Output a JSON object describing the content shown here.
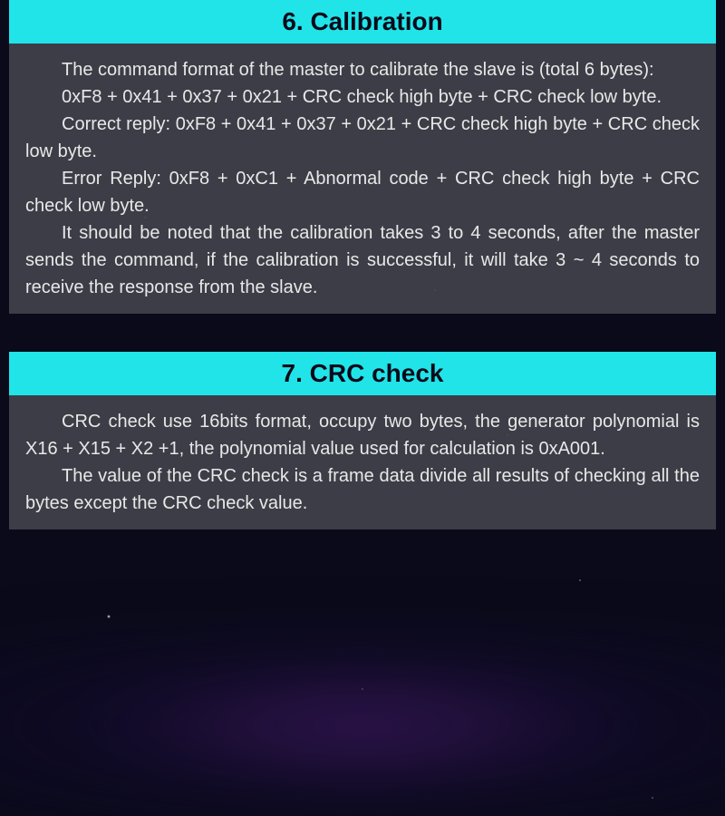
{
  "colors": {
    "header_bg": "#20e4e8",
    "header_text": "#0a0a1a",
    "body_bg": "rgba(70,70,80,0.85)",
    "body_text": "#e8e8e8",
    "page_bg": "#0a0a1a"
  },
  "typography": {
    "header_fontsize": 28,
    "header_weight": 600,
    "body_fontsize": 20,
    "body_lineheight": 1.5,
    "text_indent": "2em"
  },
  "layout": {
    "section_margin_x": 10,
    "body_padding": "14px 18px",
    "gap_between_sections": 42
  },
  "sections": [
    {
      "title": "6. Calibration",
      "paragraphs": [
        "The command format of the master to calibrate the slave is (total 6 bytes):",
        "0xF8 + 0x41 + 0x37 + 0x21 + CRC check high byte + CRC check low byte.",
        "Correct reply: 0xF8 + 0x41 + 0x37 + 0x21 + CRC check high byte + CRC check low byte.",
        "Error Reply: 0xF8 + 0xC1 + Abnormal code + CRC check high byte + CRC check low byte.",
        "It should be noted that the calibration takes 3 to 4 seconds, after the master sends the command, if the calibration is successful, it will take 3 ~ 4 seconds to receive the response from the slave."
      ]
    },
    {
      "title": "7. CRC check",
      "paragraphs": [
        "CRC check use 16bits format, occupy two bytes, the generator polynomial is X16 + X15 + X2 +1, the polynomial value used for calculation is 0xA001.",
        "The value of the CRC check is a frame data divide all results of checking all the bytes except the CRC check value."
      ]
    }
  ]
}
